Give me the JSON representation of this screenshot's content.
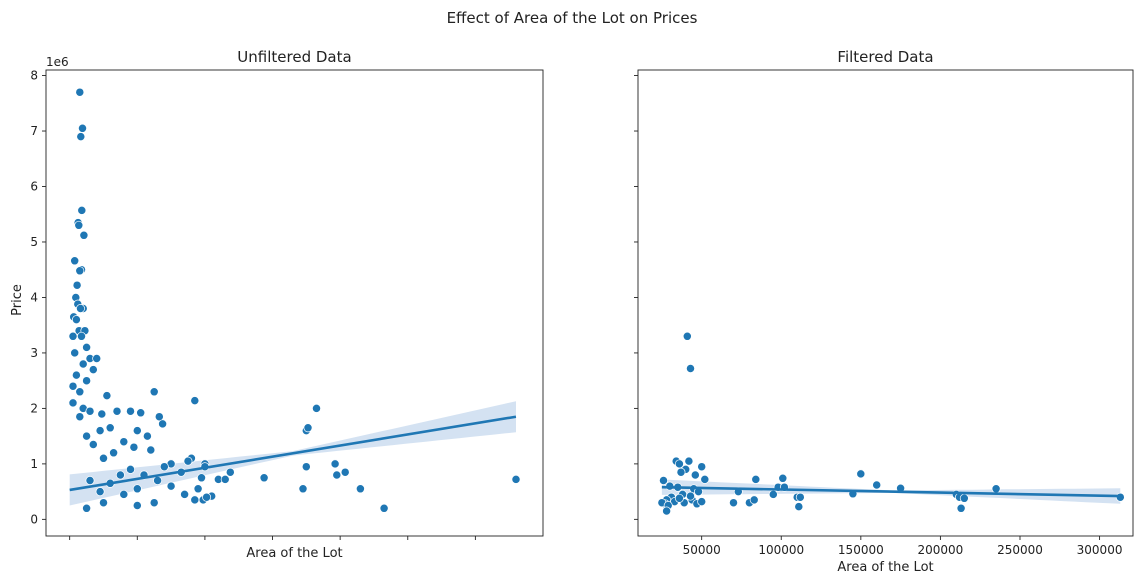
{
  "suptitle": "Effect of Area of the Lot on Prices",
  "colors": {
    "point": "#1f77b4",
    "line": "#1f77b4",
    "band": "#c6d8ee"
  },
  "chart_data": [
    {
      "type": "scatter",
      "title": "Unfiltered Data",
      "xlabel": "Area of the Lot",
      "ylabel": "Price",
      "y_offset_label": "1e6",
      "xlim": [
        -70000,
        1400000
      ],
      "ylim": [
        -300000,
        8100000
      ],
      "x_tick_labels_shown": false,
      "yticks": [
        0,
        1000000,
        2000000,
        3000000,
        4000000,
        5000000,
        6000000,
        7000000,
        8000000
      ],
      "ytick_labels": [
        "0",
        "1",
        "2",
        "3",
        "4",
        "5",
        "6",
        "7",
        "8"
      ],
      "regression": {
        "x0": 0,
        "y0": 530000,
        "x1": 1320000,
        "y1": 1850000,
        "ci_start": 40000,
        "ci_end": 280000
      },
      "points": [
        [
          30000,
          7700000
        ],
        [
          38000,
          7050000
        ],
        [
          33000,
          6900000
        ],
        [
          36000,
          5570000
        ],
        [
          25000,
          5350000
        ],
        [
          27000,
          5300000
        ],
        [
          42000,
          5120000
        ],
        [
          15000,
          4660000
        ],
        [
          35000,
          4500000
        ],
        [
          30000,
          4480000
        ],
        [
          22000,
          4220000
        ],
        [
          18000,
          4000000
        ],
        [
          24000,
          3880000
        ],
        [
          40000,
          3800000
        ],
        [
          32000,
          3800000
        ],
        [
          12000,
          3650000
        ],
        [
          20000,
          3600000
        ],
        [
          28000,
          3400000
        ],
        [
          45000,
          3400000
        ],
        [
          10000,
          3300000
        ],
        [
          35000,
          3300000
        ],
        [
          50000,
          3100000
        ],
        [
          15000,
          3000000
        ],
        [
          60000,
          2900000
        ],
        [
          80000,
          2900000
        ],
        [
          40000,
          2800000
        ],
        [
          70000,
          2700000
        ],
        [
          20000,
          2600000
        ],
        [
          50000,
          2500000
        ],
        [
          10000,
          2400000
        ],
        [
          30000,
          2300000
        ],
        [
          110000,
          2230000
        ],
        [
          250000,
          2300000
        ],
        [
          370000,
          2140000
        ],
        [
          10000,
          2100000
        ],
        [
          40000,
          2000000
        ],
        [
          60000,
          1950000
        ],
        [
          140000,
          1950000
        ],
        [
          180000,
          1950000
        ],
        [
          210000,
          1920000
        ],
        [
          95000,
          1900000
        ],
        [
          30000,
          1850000
        ],
        [
          265000,
          1850000
        ],
        [
          275000,
          1720000
        ],
        [
          120000,
          1650000
        ],
        [
          90000,
          1600000
        ],
        [
          200000,
          1600000
        ],
        [
          50000,
          1500000
        ],
        [
          160000,
          1400000
        ],
        [
          230000,
          1500000
        ],
        [
          70000,
          1350000
        ],
        [
          190000,
          1300000
        ],
        [
          240000,
          1250000
        ],
        [
          130000,
          1200000
        ],
        [
          360000,
          1100000
        ],
        [
          100000,
          1100000
        ],
        [
          300000,
          1000000
        ],
        [
          350000,
          1050000
        ],
        [
          400000,
          1000000
        ],
        [
          400000,
          950000
        ],
        [
          280000,
          950000
        ],
        [
          180000,
          900000
        ],
        [
          330000,
          850000
        ],
        [
          220000,
          800000
        ],
        [
          150000,
          800000
        ],
        [
          390000,
          750000
        ],
        [
          60000,
          700000
        ],
        [
          120000,
          650000
        ],
        [
          260000,
          700000
        ],
        [
          300000,
          600000
        ],
        [
          200000,
          550000
        ],
        [
          380000,
          550000
        ],
        [
          90000,
          500000
        ],
        [
          340000,
          450000
        ],
        [
          160000,
          450000
        ],
        [
          370000,
          350000
        ],
        [
          250000,
          300000
        ],
        [
          200000,
          250000
        ],
        [
          100000,
          300000
        ],
        [
          50000,
          200000
        ],
        [
          440000,
          720000
        ],
        [
          460000,
          720000
        ],
        [
          475000,
          850000
        ],
        [
          575000,
          750000
        ],
        [
          690000,
          550000
        ],
        [
          700000,
          1600000
        ],
        [
          705000,
          1650000
        ],
        [
          730000,
          2000000
        ],
        [
          700000,
          950000
        ],
        [
          785000,
          1000000
        ],
        [
          790000,
          800000
        ],
        [
          815000,
          850000
        ],
        [
          860000,
          550000
        ],
        [
          930000,
          200000
        ],
        [
          1320000,
          720000
        ],
        [
          395000,
          350000
        ],
        [
          420000,
          420000
        ],
        [
          405000,
          400000
        ]
      ]
    },
    {
      "type": "scatter",
      "title": "Filtered Data",
      "xlabel": "Area of the Lot",
      "ylabel": "",
      "xlim": [
        10000,
        321000
      ],
      "ylim": [
        -300000,
        8100000
      ],
      "xticks": [
        50000,
        100000,
        150000,
        200000,
        250000,
        300000
      ],
      "xtick_labels": [
        "50000",
        "100000",
        "150000",
        "200000",
        "250000",
        "300000"
      ],
      "y_tick_labels_shown": false,
      "regression": {
        "x0": 25000,
        "y0": 580000,
        "x1": 313000,
        "y1": 420000,
        "ci_start": 22000,
        "ci_end": 140000
      },
      "points": [
        [
          41000,
          3300000
        ],
        [
          43000,
          2720000
        ],
        [
          34000,
          1050000
        ],
        [
          36000,
          1000000
        ],
        [
          42000,
          1050000
        ],
        [
          40000,
          900000
        ],
        [
          37000,
          850000
        ],
        [
          50000,
          950000
        ],
        [
          46000,
          800000
        ],
        [
          52000,
          720000
        ],
        [
          26000,
          700000
        ],
        [
          30000,
          600000
        ],
        [
          35000,
          580000
        ],
        [
          45000,
          550000
        ],
        [
          48000,
          500000
        ],
        [
          38000,
          450000
        ],
        [
          31000,
          400000
        ],
        [
          28000,
          350000
        ],
        [
          44000,
          350000
        ],
        [
          33000,
          320000
        ],
        [
          39000,
          300000
        ],
        [
          27000,
          280000
        ],
        [
          25000,
          300000
        ],
        [
          29000,
          250000
        ],
        [
          47000,
          280000
        ],
        [
          43000,
          420000
        ],
        [
          36000,
          380000
        ],
        [
          50000,
          320000
        ],
        [
          28000,
          150000
        ],
        [
          70000,
          300000
        ],
        [
          73000,
          500000
        ],
        [
          80000,
          300000
        ],
        [
          83000,
          350000
        ],
        [
          84000,
          720000
        ],
        [
          95000,
          450000
        ],
        [
          98000,
          580000
        ],
        [
          101000,
          740000
        ],
        [
          102000,
          580000
        ],
        [
          110000,
          400000
        ],
        [
          111000,
          230000
        ],
        [
          112000,
          400000
        ],
        [
          145000,
          460000
        ],
        [
          150000,
          820000
        ],
        [
          160000,
          620000
        ],
        [
          175000,
          560000
        ],
        [
          210000,
          450000
        ],
        [
          212000,
          400000
        ],
        [
          213000,
          200000
        ],
        [
          215000,
          380000
        ],
        [
          235000,
          550000
        ],
        [
          313000,
          400000
        ]
      ]
    }
  ]
}
